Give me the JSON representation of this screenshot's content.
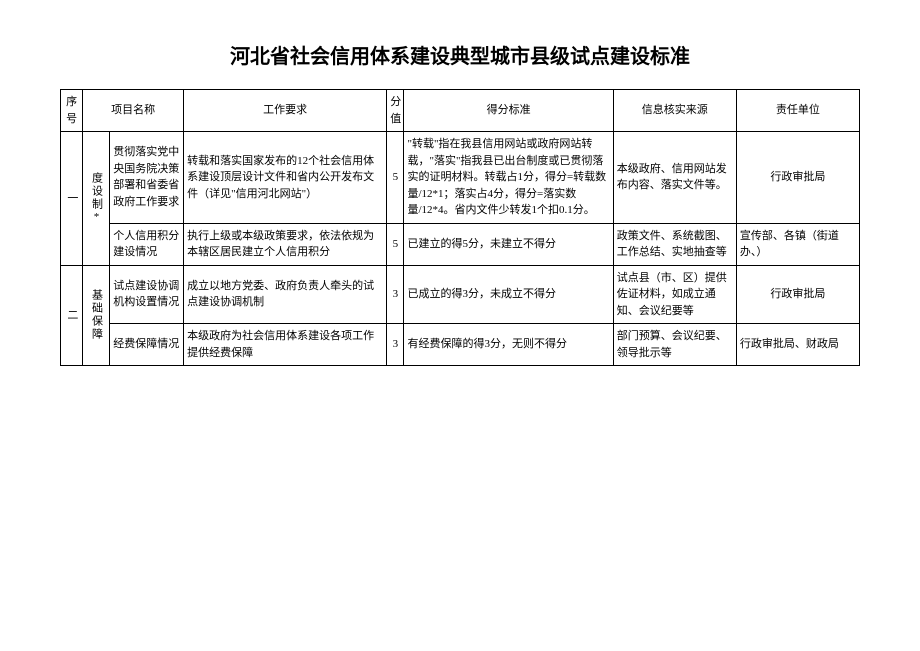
{
  "title": "河北省社会信用体系建设典型城市县级试点建设标准",
  "headers": {
    "seq": "序号",
    "project": "项目名称",
    "requirement": "工作要求",
    "score": "分值",
    "standard": "得分标准",
    "source": "信息核实来源",
    "responsible": "责任单位"
  },
  "sections": [
    {
      "seq": "一",
      "category": "度设制*",
      "rows": [
        {
          "project": "贯彻落实党中央国务院决策部署和省委省政府工作要求",
          "requirement": "转载和落实国家发布的12个社会信用体系建设顶层设计文件和省内公开发布文件（详见\"信用河北网站\"）",
          "score": "5",
          "standard": "\"转载\"指在我县信用网站或政府网站转载，\"落实\"指我县已出台制度或已贯彻落实的证明材料。转载占1分，得分=转载数量/12*1；落实占4分，得分=落实数量/12*4。省内文件少转发1个扣0.1分。",
          "source": "本级政府、信用网站发布内容、落实文件等。",
          "responsible": "行政审批局"
        },
        {
          "project": "个人信用积分建设情况",
          "requirement": "执行上级或本级政策要求，依法依规为本辖区居民建立个人信用积分",
          "score": "5",
          "standard": "已建立的得5分，未建立不得分",
          "source": "政策文件、系统截图、工作总结、实地抽查等",
          "responsible": "宣传部、各镇（街道办、）"
        }
      ]
    },
    {
      "seq": "二",
      "category": "基础保障",
      "rows": [
        {
          "project": "试点建设协调机构设置情况",
          "requirement": "成立以地方党委、政府负责人牵头的试点建设协调机制",
          "score": "3",
          "standard": "已成立的得3分，未成立不得分",
          "source": "试点县（市、区）提供佐证材料，如成立通知、会议纪要等",
          "responsible": "行政审批局"
        },
        {
          "project": "经费保障情况",
          "requirement": "本级政府为社会信用体系建设各项工作提供经费保障",
          "score": "3",
          "standard": "有经费保障的得3分，无则不得分",
          "source": "部门预算、会议纪要、领导批示等",
          "responsible": "行政审批局、财政局"
        }
      ]
    }
  ]
}
